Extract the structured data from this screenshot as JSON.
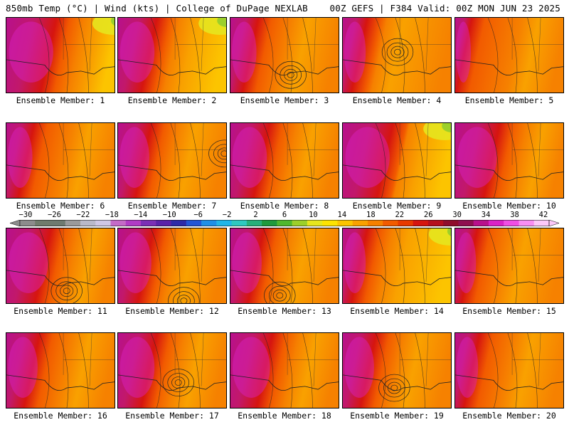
{
  "header": {
    "left": "850mb Temp (°C) | Wind (kts) | College of DuPage NEXLAB",
    "right": "00Z GEFS | F384 Valid: 00Z MON JUN 23 2025"
  },
  "panels": [
    {
      "label": "Ensemble Member: 1",
      "hot": 0.45,
      "warm": 0.7,
      "green": 0.85,
      "low": null
    },
    {
      "label": "Ensemble Member: 2",
      "hot": 0.35,
      "warm": 0.55,
      "green": 0.8,
      "low": null
    },
    {
      "label": "Ensemble Member: 3",
      "hot": 0.25,
      "warm": 0.55,
      "green": null,
      "low": [
        0.55,
        0.75
      ]
    },
    {
      "label": "Ensemble Member: 4",
      "hot": 0.22,
      "warm": 0.4,
      "green": null,
      "low": [
        0.5,
        0.45
      ]
    },
    {
      "label": "Ensemble Member: 5",
      "hot": 0.15,
      "warm": 0.6,
      "green": null,
      "low": null
    },
    {
      "label": "Ensemble Member: 6",
      "hot": 0.25,
      "warm": 0.6,
      "green": null,
      "low": null
    },
    {
      "label": "Ensemble Member: 7",
      "hot": 0.3,
      "warm": 0.55,
      "green": null,
      "low": [
        0.97,
        0.4
      ]
    },
    {
      "label": "Ensemble Member: 8",
      "hot": 0.35,
      "warm": 0.6,
      "green": null,
      "low": null
    },
    {
      "label": "Ensemble Member: 9",
      "hot": 0.45,
      "warm": 0.6,
      "green": 0.8,
      "low": null
    },
    {
      "label": "Ensemble Member: 10",
      "hot": 0.4,
      "warm": 0.65,
      "green": null,
      "low": null
    },
    {
      "label": "Ensemble Member: 11",
      "hot": 0.4,
      "warm": 0.65,
      "green": null,
      "low": [
        0.55,
        0.82
      ]
    },
    {
      "label": "Ensemble Member: 12",
      "hot": 0.32,
      "warm": 0.55,
      "green": null,
      "low": [
        0.6,
        0.95
      ]
    },
    {
      "label": "Ensemble Member: 13",
      "hot": 0.3,
      "warm": 0.55,
      "green": null,
      "low": [
        0.45,
        0.88
      ]
    },
    {
      "label": "Ensemble Member: 14",
      "hot": 0.22,
      "warm": 0.45,
      "green": 0.85,
      "low": null
    },
    {
      "label": "Ensemble Member: 15",
      "hot": 0.2,
      "warm": 0.5,
      "green": null,
      "low": null
    },
    {
      "label": "Ensemble Member: 16",
      "hot": 0.3,
      "warm": 0.6,
      "green": null,
      "low": null
    },
    {
      "label": "Ensemble Member: 17",
      "hot": 0.35,
      "warm": 0.6,
      "green": null,
      "low": [
        0.55,
        0.65
      ]
    },
    {
      "label": "Ensemble Member: 18",
      "hot": 0.38,
      "warm": 0.62,
      "green": null,
      "low": null
    },
    {
      "label": "Ensemble Member: 19",
      "hot": 0.3,
      "warm": 0.55,
      "green": null,
      "low": [
        0.47,
        0.72
      ]
    },
    {
      "label": "Ensemble Member: 20",
      "hot": 0.22,
      "warm": 0.55,
      "green": null,
      "low": null
    }
  ],
  "colorbar": {
    "ticks": [
      "−30",
      "−26",
      "−22",
      "−18",
      "−14",
      "−10",
      "−6",
      "−2",
      "2",
      "6",
      "10",
      "14",
      "18",
      "22",
      "26",
      "30",
      "34",
      "38",
      "42"
    ],
    "colors": [
      "#8c8c8c",
      "#707c6c",
      "#6e7a70",
      "#9a9a9a",
      "#b9b9c9",
      "#cfc7e3",
      "#c46ac8",
      "#b03cc6",
      "#7b2fb6",
      "#5a22a8",
      "#2d2aa8",
      "#2255d6",
      "#1e8fe6",
      "#21b6e6",
      "#2ec9c0",
      "#26b07a",
      "#1e9a3c",
      "#4fb82e",
      "#9cd02a",
      "#e6e61e",
      "#fde300",
      "#fcc400",
      "#f9a100",
      "#f68100",
      "#f25b00",
      "#e83a00",
      "#d6150f",
      "#b50e1e",
      "#8f0c2c",
      "#8e1050",
      "#b8108c",
      "#da22c6",
      "#f04ee4",
      "#f88ef2",
      "#fcc8fa"
    ]
  }
}
